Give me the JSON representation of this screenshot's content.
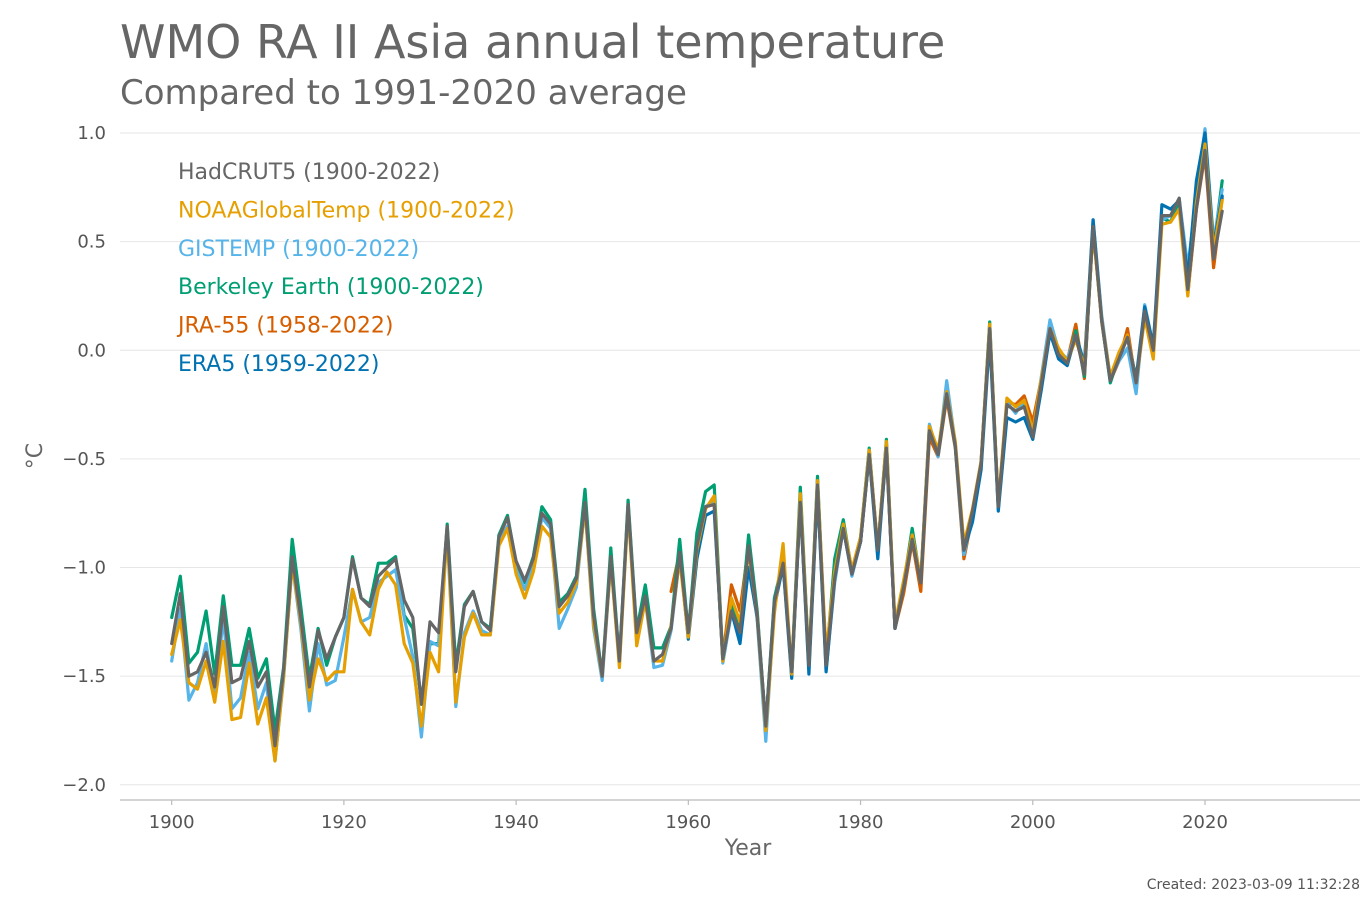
{
  "chart_data": {
    "type": "line",
    "title": "WMO RA II Asia annual temperature",
    "subtitle": "Compared to 1991-2020 average",
    "xlabel": "Year",
    "ylabel": "°C",
    "xlim": [
      1894,
      2038
    ],
    "ylim": [
      -2.07,
      1.06
    ],
    "xticks": [
      1900,
      1920,
      1940,
      1960,
      1980,
      2000,
      2020
    ],
    "yticks": [
      1.0,
      0.5,
      0.0,
      -0.5,
      -1.0,
      -1.5,
      -2.0
    ],
    "ytick_labels": [
      "1.0",
      "0.5",
      "0.0",
      "−0.5",
      "−1.0",
      "−1.5",
      "−2.0"
    ],
    "grid": "horizontal",
    "legend_position": "top-left",
    "created": "Created: 2023-03-09 11:32:28",
    "base_series": [
      -1.35,
      -1.12,
      -1.5,
      -1.48,
      -1.39,
      -1.55,
      -1.18,
      -1.53,
      -1.51,
      -1.34,
      -1.55,
      -1.48,
      -1.82,
      -1.47,
      -0.95,
      -1.23,
      -1.55,
      -1.29,
      -1.42,
      -1.32,
      -1.23,
      -0.96,
      -1.14,
      -1.18,
      -1.04,
      -1.0,
      -0.96,
      -1.15,
      -1.23,
      -1.63,
      -1.25,
      -1.3,
      -0.81,
      -1.48,
      -1.18,
      -1.11,
      -1.25,
      -1.29,
      -0.86,
      -0.77,
      -0.97,
      -1.06,
      -0.96,
      -0.75,
      -0.8,
      -1.18,
      -1.13,
      -1.05,
      -0.7,
      -1.22,
      -1.5,
      -0.95,
      -1.43,
      -0.71,
      -1.3,
      -1.13,
      -1.43,
      -1.4,
      -1.28,
      -0.93,
      -1.3,
      -0.9,
      -0.72,
      -0.71,
      -1.42,
      -1.2,
      -1.3,
      -0.9,
      -1.22,
      -1.73,
      -1.16,
      -0.98,
      -1.48,
      -0.7,
      -1.45,
      -0.62,
      -1.45,
      -1.05,
      -0.82,
      -1.03,
      -0.88,
      -0.48,
      -0.92,
      -0.45,
      -1.28,
      -1.09,
      -0.87,
      -1.07,
      -0.37,
      -0.48,
      -0.2,
      -0.44,
      -0.92,
      -0.74,
      -0.52,
      0.1,
      -0.72,
      -0.25,
      -0.28,
      -0.26,
      -0.4,
      -0.15,
      0.1,
      -0.02,
      -0.06,
      0.07,
      -0.11,
      0.57,
      0.14,
      -0.14,
      -0.04,
      0.06,
      -0.15,
      0.18,
      0.0,
      0.62,
      0.62,
      0.7,
      0.28,
      0.65,
      0.92,
      0.42,
      0.64
    ],
    "series": [
      {
        "name": "HadCRUT5 (1900-2022)",
        "color": "#666666",
        "start": 1900,
        "end": 2022,
        "deltas": [
          0.0,
          0.0,
          0.0,
          0.0,
          0.0,
          0.0,
          0.0,
          0.0,
          0.0,
          0.0,
          0.0,
          0.0,
          0.0,
          0.0,
          0.0,
          0.0,
          0.0,
          0.0,
          0.0,
          0.0,
          0.0,
          0.0,
          0.0,
          0.0,
          0.0,
          0.0,
          0.0,
          0.0,
          0.0,
          0.0,
          0.0,
          0.0,
          0.0,
          0.0,
          0.0,
          0.0,
          0.0,
          0.0,
          0.0,
          0.0,
          0.0,
          0.0,
          0.0,
          0.0,
          0.0,
          0.0,
          0.0,
          0.0,
          0.0,
          0.0,
          0.0,
          0.0,
          0.0,
          0.0,
          0.0,
          0.0,
          0.0,
          0.0,
          0.0,
          0.0,
          0.0,
          0.0,
          0.0,
          0.0,
          0.0,
          0.0,
          0.0,
          0.0,
          0.0,
          0.0,
          0.0,
          0.0,
          0.0,
          0.0,
          0.0,
          0.0,
          0.0,
          0.0,
          0.0,
          0.0,
          0.0,
          0.0,
          0.0,
          0.0,
          0.0,
          0.0,
          0.0,
          0.0,
          0.0,
          0.0,
          0.0,
          0.0,
          0.0,
          0.0,
          0.0,
          0.0,
          0.0,
          0.0,
          0.0,
          0.0,
          0.0,
          0.0,
          0.0,
          0.0,
          0.0,
          0.0,
          0.0,
          0.0,
          0.0,
          0.0,
          0.0,
          0.0,
          0.0,
          0.0,
          0.0,
          0.0,
          0.0,
          0.0,
          0.0,
          0.0,
          0.0,
          0.0,
          0.0
        ]
      },
      {
        "name": "NOAAGlobalTemp (1900-2022)",
        "color": "#E69F00",
        "start": 1900,
        "end": 2022,
        "deltas": [
          -0.05,
          -0.12,
          -0.03,
          -0.08,
          -0.04,
          -0.07,
          -0.16,
          -0.17,
          -0.18,
          -0.1,
          -0.17,
          -0.12,
          -0.07,
          -0.03,
          -0.03,
          -0.02,
          -0.06,
          -0.13,
          -0.1,
          -0.16,
          -0.25,
          -0.14,
          -0.11,
          -0.13,
          -0.06,
          -0.02,
          -0.12,
          -0.2,
          -0.21,
          -0.1,
          -0.14,
          -0.18,
          -0.01,
          -0.14,
          -0.14,
          -0.1,
          -0.06,
          -0.02,
          -0.04,
          -0.05,
          -0.06,
          -0.08,
          -0.06,
          -0.06,
          -0.06,
          -0.03,
          -0.03,
          -0.02,
          -0.02,
          -0.04,
          0.0,
          -0.02,
          -0.03,
          -0.02,
          -0.06,
          -0.02,
          0.0,
          -0.03,
          0.01,
          -0.03,
          -0.02,
          -0.02,
          -0.01,
          0.04,
          -0.01,
          0.06,
          0.05,
          -0.02,
          0.0,
          -0.02,
          -0.05,
          0.09,
          -0.01,
          0.04,
          0.01,
          0.02,
          0.05,
          0.03,
          0.02,
          0.02,
          0.02,
          0.02,
          0.01,
          0.03,
          0.02,
          0.03,
          0.02,
          0.02,
          0.02,
          0.02,
          0.01,
          0.02,
          0.03,
          0.01,
          0.01,
          0.02,
          0.01,
          0.03,
          0.02,
          0.03,
          0.03,
          0.02,
          0.0,
          0.03,
          0.01,
          -0.02,
          0.03,
          -0.02,
          0.0,
          0.02,
          0.03,
          0.01,
          0.0,
          -0.03,
          -0.04,
          -0.04,
          -0.03,
          -0.05,
          -0.03,
          0.03,
          0.03,
          0.04,
          0.05
        ]
      },
      {
        "name": "GISTEMP (1900-2022)",
        "color": "#56B4E9",
        "start": 1900,
        "end": 2022,
        "deltas": [
          -0.08,
          -0.07,
          -0.11,
          -0.05,
          0.04,
          -0.06,
          -0.05,
          -0.12,
          -0.09,
          -0.05,
          -0.1,
          -0.05,
          -0.07,
          -0.04,
          -0.03,
          -0.05,
          -0.11,
          -0.06,
          -0.12,
          -0.2,
          -0.09,
          -0.14,
          -0.11,
          -0.05,
          -0.03,
          -0.04,
          -0.05,
          -0.08,
          -0.18,
          -0.15,
          -0.09,
          -0.06,
          -0.03,
          -0.16,
          -0.12,
          -0.09,
          -0.04,
          -0.02,
          -0.02,
          -0.04,
          -0.04,
          -0.04,
          -0.04,
          -0.02,
          -0.02,
          -0.1,
          -0.06,
          -0.04,
          -0.02,
          -0.06,
          -0.02,
          -0.02,
          -0.01,
          -0.01,
          -0.02,
          -0.02,
          -0.03,
          -0.05,
          -0.01,
          -0.02,
          -0.01,
          -0.01,
          0.0,
          0.02,
          -0.02,
          -0.01,
          -0.02,
          -0.01,
          -0.02,
          -0.07,
          -0.01,
          0.0,
          -0.01,
          0.02,
          -0.01,
          0.01,
          -0.02,
          -0.02,
          0.0,
          -0.01,
          0.0,
          0.02,
          0.0,
          0.01,
          0.0,
          0.01,
          0.02,
          0.01,
          0.03,
          -0.01,
          0.06,
          0.01,
          -0.02,
          -0.02,
          0.01,
          0.01,
          -0.01,
          0.01,
          -0.01,
          0.03,
          0.01,
          0.03,
          0.04,
          0.02,
          0.02,
          0.0,
          0.02,
          0.03,
          0.02,
          0.01,
          -0.01,
          -0.05,
          -0.05,
          0.03,
          0.02,
          -0.02,
          0.0,
          0.0,
          0.1,
          0.06,
          0.1,
          0.08,
          0.1
        ]
      },
      {
        "name": "Berkeley Earth (1900-2022)",
        "color": "#009E73",
        "start": 1900,
        "end": 2022,
        "deltas": [
          0.12,
          0.08,
          0.06,
          0.09,
          0.19,
          0.06,
          0.05,
          0.08,
          0.06,
          0.06,
          0.04,
          0.06,
          0.07,
          0.01,
          0.08,
          0.05,
          0.04,
          0.01,
          -0.03,
          0.0,
          0.0,
          0.01,
          0.0,
          0.01,
          0.06,
          0.02,
          0.01,
          -0.07,
          -0.05,
          0.01,
          -0.1,
          -0.05,
          0.01,
          0.03,
          0.01,
          0.0,
          0.0,
          0.01,
          0.01,
          0.01,
          -0.01,
          -0.01,
          0.01,
          0.03,
          0.02,
          0.02,
          0.01,
          0.01,
          0.06,
          0.03,
          0.0,
          0.04,
          0.0,
          0.02,
          0.01,
          0.05,
          0.06,
          0.03,
          0.01,
          0.06,
          0.0,
          0.06,
          0.07,
          0.09,
          0.0,
          0.04,
          0.01,
          0.05,
          0.02,
          0.0,
          0.02,
          0.01,
          0.0,
          0.07,
          0.01,
          0.04,
          0.01,
          0.09,
          0.04,
          0.01,
          0.02,
          0.03,
          0.0,
          0.04,
          0.0,
          0.01,
          0.05,
          0.0,
          0.02,
          0.0,
          0.0,
          0.0,
          -0.01,
          0.0,
          0.0,
          0.03,
          0.0,
          0.0,
          0.0,
          0.01,
          0.02,
          0.01,
          0.03,
          0.01,
          -0.01,
          0.02,
          -0.01,
          0.0,
          0.0,
          -0.01,
          0.01,
          0.0,
          0.0,
          0.01,
          0.01,
          -0.01,
          -0.03,
          -0.01,
          0.07,
          0.08,
          0.08,
          0.05,
          0.14
        ]
      },
      {
        "name": "JRA-55 (1958-2022)",
        "color": "#D55E00",
        "start": 1958,
        "end": 2022,
        "deltas": [
          0.17,
          0.0,
          0.0,
          0.0,
          0.0,
          0.0,
          0.0,
          0.12,
          0.1,
          0.0,
          0.0,
          0.0,
          0.0,
          0.0,
          0.0,
          0.0,
          0.0,
          0.0,
          0.0,
          0.0,
          0.0,
          0.0,
          0.0,
          0.0,
          0.0,
          -0.02,
          0.0,
          -0.03,
          -0.01,
          -0.04,
          -0.03,
          -0.01,
          -0.02,
          -0.01,
          -0.04,
          -0.02,
          0.0,
          0.0,
          0.0,
          0.01,
          0.03,
          0.05,
          0.07,
          0.02,
          0.0,
          0.02,
          0.01,
          0.05,
          -0.02,
          0.0,
          -0.01,
          0.0,
          -0.01,
          0.04,
          -0.01,
          0.0,
          0.0,
          0.0,
          0.0,
          -0.02,
          -0.02,
          0.0,
          -0.02,
          -0.04,
          0.06
        ]
      },
      {
        "name": "ERA5 (1959-2022)",
        "color": "#0072B2",
        "start": 1959,
        "end": 2022,
        "deltas": [
          0.0,
          -0.03,
          -0.06,
          -0.04,
          -0.03,
          0.0,
          0.0,
          -0.05,
          -0.1,
          -0.01,
          0.0,
          -0.02,
          -0.01,
          -0.03,
          0.0,
          -0.04,
          -0.02,
          -0.03,
          0.0,
          0.0,
          0.0,
          0.0,
          0.0,
          -0.04,
          0.0,
          0.0,
          0.0,
          0.0,
          0.0,
          0.0,
          0.0,
          0.0,
          0.0,
          0.0,
          -0.05,
          -0.03,
          -0.04,
          -0.02,
          -0.06,
          -0.05,
          -0.05,
          -0.01,
          -0.03,
          -0.02,
          -0.02,
          -0.01,
          0.0,
          0.05,
          0.03,
          0.0,
          0.0,
          0.01,
          0.0,
          0.02,
          0.02,
          0.02,
          0.05,
          0.03,
          -0.01,
          0.05,
          0.13,
          0.08,
          0.06,
          0.07
        ]
      }
    ]
  }
}
